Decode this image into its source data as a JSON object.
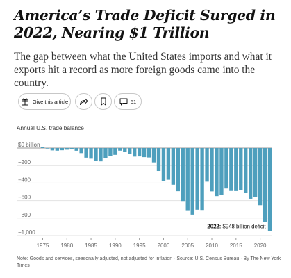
{
  "article": {
    "headline": "America’s Trade Deficit Surged in 2022, Nearing $1 Trillion",
    "dek": "The gap between what the United States imports and what it exports hit a record as more foreign goods came into the country."
  },
  "toolbar": {
    "gift_label": "Give this article",
    "comment_count": "51"
  },
  "chart": {
    "title": "Annual U.S. trade balance",
    "annotation_bold": "2022:",
    "annotation_text": " $948 billion deficit",
    "footnote_note": "Note: Goods and services, seasonally adjusted, not adjusted for inflation",
    "footnote_source": "Source: U.S. Census Bureau",
    "footnote_credit": "By The New York Times",
    "bar_color": "#4e9fbd"
  },
  "chart_data": {
    "type": "bar",
    "title": "Annual U.S. trade balance",
    "ylabel": "",
    "xlabel": "",
    "ylim": [
      -1000,
      0
    ],
    "y_ticks": [
      0,
      -200,
      -400,
      -600,
      -800,
      -1000
    ],
    "y_tick_labels": [
      "$0 billion",
      "−200",
      "−400",
      "−600",
      "−800",
      "−1,000"
    ],
    "x_ticks": [
      1975,
      1980,
      1985,
      1990,
      1995,
      2000,
      2005,
      2010,
      2015,
      2020
    ],
    "categories": [
      1975,
      1976,
      1977,
      1978,
      1979,
      1980,
      1981,
      1982,
      1983,
      1984,
      1985,
      1986,
      1987,
      1988,
      1989,
      1990,
      1991,
      1992,
      1993,
      1994,
      1995,
      1996,
      1997,
      1998,
      1999,
      2000,
      2001,
      2002,
      2003,
      2004,
      2005,
      2006,
      2007,
      2008,
      2009,
      2010,
      2011,
      2012,
      2013,
      2014,
      2015,
      2016,
      2017,
      2018,
      2019,
      2020,
      2021,
      2022
    ],
    "values": [
      12,
      -6,
      -27,
      -30,
      -25,
      -19,
      -16,
      -31,
      -58,
      -110,
      -122,
      -145,
      -152,
      -115,
      -88,
      -78,
      -30,
      -40,
      -70,
      -98,
      -96,
      -104,
      -108,
      -164,
      -262,
      -375,
      -362,
      -419,
      -493,
      -605,
      -711,
      -761,
      -705,
      -708,
      -384,
      -495,
      -549,
      -537,
      -462,
      -490,
      -491,
      -481,
      -513,
      -579,
      -559,
      -653,
      -845,
      -948
    ],
    "grid": true,
    "legend": "none",
    "annotation": "2022: $948 billion deficit"
  }
}
